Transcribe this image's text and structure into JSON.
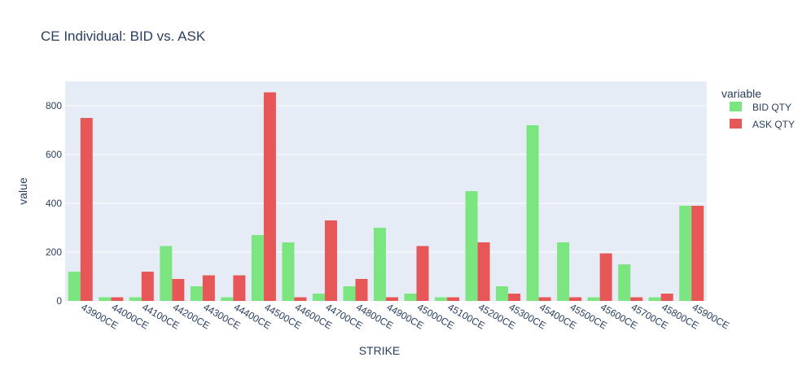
{
  "chart_data": {
    "type": "bar",
    "title": "CE Individual: BID vs. ASK",
    "xlabel": "STRIKE",
    "ylabel": "value",
    "ylim": [
      0,
      900
    ],
    "yticks": [
      0,
      200,
      400,
      600,
      800
    ],
    "grid": true,
    "legend_title": "variable",
    "legend_position": "top-right",
    "categories": [
      "43900CE",
      "44000CE",
      "44100CE",
      "44200CE",
      "44300CE",
      "44400CE",
      "44500CE",
      "44600CE",
      "44700CE",
      "44800CE",
      "44900CE",
      "45000CE",
      "45100CE",
      "45200CE",
      "45300CE",
      "45400CE",
      "45500CE",
      "45600CE",
      "45700CE",
      "45800CE",
      "45900CE"
    ],
    "series": [
      {
        "name": "BID QTY",
        "color": "#7be67f",
        "values": [
          120,
          15,
          15,
          225,
          60,
          15,
          270,
          240,
          30,
          60,
          300,
          30,
          15,
          450,
          60,
          720,
          240,
          15,
          150,
          15,
          390
        ]
      },
      {
        "name": "ASK QTY",
        "color": "#e85757",
        "values": [
          750,
          15,
          120,
          90,
          105,
          105,
          855,
          15,
          330,
          90,
          15,
          225,
          15,
          240,
          30,
          15,
          15,
          195,
          15,
          30,
          390
        ]
      }
    ]
  }
}
